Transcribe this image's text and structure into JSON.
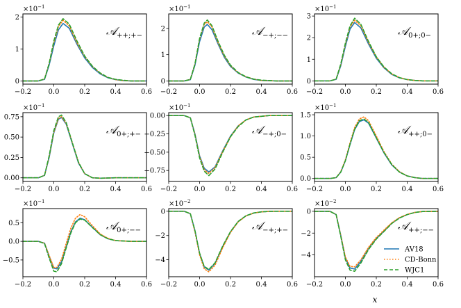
{
  "colors": {
    "AV18": "#1f77b4",
    "CD-Bonn": "#ff7f0e",
    "WJC1": "#2ca02c"
  },
  "chart_data": [
    {
      "type": "line",
      "label_main": "𝒜",
      "label_sub": "++;+−",
      "sci_mantissa": "×10",
      "sci_exponent": "−1",
      "xlim": [
        -0.2,
        0.6
      ],
      "ylim": [
        -0.1,
        2.1
      ],
      "xticks": [
        "−0.2",
        "0.0",
        "0.2",
        "0.4",
        "0.6"
      ],
      "xtick_values": [
        -0.2,
        0,
        0.2,
        0.4,
        0.6
      ],
      "yticks": [
        "0",
        "1",
        "2"
      ],
      "ytick_values": [
        0,
        1,
        2
      ],
      "x": [
        -0.2,
        -0.1,
        -0.06,
        -0.03,
        0.0,
        0.03,
        0.06,
        0.1,
        0.15,
        0.2,
        0.25,
        0.3,
        0.35,
        0.4,
        0.45,
        0.5,
        0.6
      ],
      "series": [
        {
          "name": "AV18",
          "values": [
            0,
            0,
            0.05,
            0.5,
            1.1,
            1.6,
            1.8,
            1.65,
            1.15,
            0.72,
            0.42,
            0.22,
            0.1,
            0.04,
            0.01,
            0,
            0
          ]
        },
        {
          "name": "CD-Bonn",
          "values": [
            0,
            0,
            0.06,
            0.55,
            1.2,
            1.7,
            1.9,
            1.72,
            1.2,
            0.76,
            0.45,
            0.24,
            0.11,
            0.04,
            0.01,
            0,
            0
          ]
        },
        {
          "name": "WJC1",
          "values": [
            0,
            0,
            0.06,
            0.55,
            1.25,
            1.75,
            1.95,
            1.78,
            1.25,
            0.78,
            0.46,
            0.25,
            0.11,
            0.05,
            0.02,
            0,
            0
          ]
        }
      ]
    },
    {
      "type": "line",
      "label_main": "𝒜",
      "label_sub": "−+;−−",
      "sci_mantissa": "×10",
      "sci_exponent": "−1",
      "xlim": [
        -0.2,
        0.6
      ],
      "ylim": [
        -0.12,
        2.55
      ],
      "xticks": [
        "−0.2",
        "0.0",
        "0.2",
        "0.4",
        "0.6"
      ],
      "xtick_values": [
        -0.2,
        0,
        0.2,
        0.4,
        0.6
      ],
      "yticks": [
        "0",
        "1",
        "2"
      ],
      "ytick_values": [
        0,
        1,
        2
      ],
      "x": [
        -0.2,
        -0.1,
        -0.06,
        -0.03,
        0.0,
        0.03,
        0.05,
        0.08,
        0.12,
        0.16,
        0.2,
        0.25,
        0.3,
        0.35,
        0.4,
        0.5,
        0.6
      ],
      "series": [
        {
          "name": "AV18",
          "values": [
            0,
            0,
            0.05,
            0.6,
            1.5,
            2.05,
            2.15,
            1.95,
            1.4,
            0.9,
            0.55,
            0.3,
            0.15,
            0.06,
            0.02,
            0,
            0
          ]
        },
        {
          "name": "CD-Bonn",
          "values": [
            0,
            0,
            0.06,
            0.65,
            1.6,
            2.15,
            2.25,
            2.05,
            1.45,
            0.95,
            0.58,
            0.31,
            0.16,
            0.07,
            0.02,
            0,
            0
          ]
        },
        {
          "name": "WJC1",
          "values": [
            0,
            0,
            0.06,
            0.65,
            1.62,
            2.2,
            2.32,
            2.1,
            1.5,
            0.98,
            0.6,
            0.32,
            0.16,
            0.07,
            0.03,
            0,
            0
          ]
        }
      ]
    },
    {
      "type": "line",
      "label_main": "𝒜",
      "label_sub": "0+;0−",
      "sci_mantissa": "×10",
      "sci_exponent": "−1",
      "xlim": [
        -0.2,
        0.6
      ],
      "ylim": [
        -0.15,
        3.1
      ],
      "xticks": [
        "−0.2",
        "0.0",
        "0.2",
        "0.4",
        "0.6"
      ],
      "xtick_values": [
        -0.2,
        0,
        0.2,
        0.4,
        0.6
      ],
      "yticks": [
        "0",
        "1",
        "2",
        "3"
      ],
      "ytick_values": [
        0,
        1,
        2,
        3
      ],
      "x": [
        -0.2,
        -0.1,
        -0.06,
        -0.03,
        0.0,
        0.03,
        0.06,
        0.1,
        0.15,
        0.2,
        0.25,
        0.3,
        0.35,
        0.4,
        0.45,
        0.5,
        0.6
      ],
      "series": [
        {
          "name": "AV18",
          "values": [
            0,
            0,
            0.07,
            0.7,
            1.6,
            2.4,
            2.7,
            2.45,
            1.7,
            1.05,
            0.6,
            0.3,
            0.14,
            0.06,
            0.02,
            0,
            0
          ]
        },
        {
          "name": "CD-Bonn",
          "values": [
            0,
            0,
            0.08,
            0.75,
            1.7,
            2.5,
            2.8,
            2.55,
            1.78,
            1.1,
            0.63,
            0.32,
            0.15,
            0.06,
            0.02,
            0,
            0
          ]
        },
        {
          "name": "WJC1",
          "values": [
            0,
            0,
            0.08,
            0.78,
            1.75,
            2.55,
            2.9,
            2.62,
            1.82,
            1.12,
            0.64,
            0.33,
            0.15,
            0.06,
            0.02,
            0,
            0
          ]
        }
      ]
    },
    {
      "type": "line",
      "label_main": "𝒜",
      "label_sub": "0+;+−",
      "sci_mantissa": "×10",
      "sci_exponent": "−1",
      "xlim": [
        -0.2,
        0.6
      ],
      "ylim": [
        -0.045,
        0.8
      ],
      "xticks": [
        "−0.2",
        "0.0",
        "0.2",
        "0.4",
        "0.6"
      ],
      "xtick_values": [
        -0.2,
        0,
        0.2,
        0.4,
        0.6
      ],
      "yticks": [
        "0.00",
        "0.25",
        "0.50",
        "0.75"
      ],
      "ytick_values": [
        0,
        0.25,
        0.5,
        0.75
      ],
      "x": [
        -0.2,
        -0.1,
        -0.06,
        -0.03,
        0.0,
        0.03,
        0.05,
        0.08,
        0.12,
        0.16,
        0.2,
        0.25,
        0.3,
        0.4,
        0.5,
        0.6
      ],
      "series": [
        {
          "name": "AV18",
          "values": [
            0,
            0,
            0.03,
            0.25,
            0.55,
            0.72,
            0.74,
            0.66,
            0.42,
            0.18,
            0.05,
            0.0,
            -0.005,
            0,
            0,
            0
          ]
        },
        {
          "name": "CD-Bonn",
          "values": [
            0,
            0,
            0.03,
            0.26,
            0.56,
            0.73,
            0.75,
            0.67,
            0.43,
            0.19,
            0.05,
            0.0,
            -0.005,
            0,
            0,
            0
          ]
        },
        {
          "name": "WJC1",
          "values": [
            0,
            0,
            0.03,
            0.27,
            0.58,
            0.75,
            0.77,
            0.68,
            0.43,
            0.19,
            0.05,
            0.0,
            -0.005,
            0,
            0,
            0
          ]
        }
      ]
    },
    {
      "type": "line",
      "label_main": "𝒜",
      "label_sub": "−+;0−",
      "sci_mantissa": "×10",
      "sci_exponent": "−1",
      "xlim": [
        -0.2,
        0.6
      ],
      "ylim": [
        -0.9,
        0.04
      ],
      "xticks": [
        "−0.2",
        "0.0",
        "0.2",
        "0.4",
        "0.6"
      ],
      "xtick_values": [
        -0.2,
        0,
        0.2,
        0.4,
        0.6
      ],
      "yticks": [
        "0.00",
        "−0.25",
        "−0.50",
        "−0.75"
      ],
      "ytick_values": [
        0,
        -0.25,
        -0.5,
        -0.75
      ],
      "x": [
        -0.2,
        -0.1,
        -0.06,
        -0.03,
        0.0,
        0.03,
        0.06,
        0.1,
        0.15,
        0.2,
        0.25,
        0.3,
        0.35,
        0.4,
        0.45,
        0.5,
        0.6
      ],
      "series": [
        {
          "name": "AV18",
          "values": [
            0,
            0,
            -0.03,
            -0.25,
            -0.55,
            -0.72,
            -0.77,
            -0.7,
            -0.48,
            -0.28,
            -0.14,
            -0.06,
            -0.02,
            -0.01,
            0,
            0,
            0
          ]
        },
        {
          "name": "CD-Bonn",
          "values": [
            0,
            0,
            -0.03,
            -0.26,
            -0.56,
            -0.74,
            -0.79,
            -0.71,
            -0.49,
            -0.29,
            -0.14,
            -0.06,
            -0.02,
            -0.01,
            0,
            0,
            0
          ]
        },
        {
          "name": "WJC1",
          "values": [
            0,
            0,
            -0.03,
            -0.27,
            -0.58,
            -0.76,
            -0.82,
            -0.73,
            -0.5,
            -0.29,
            -0.15,
            -0.06,
            -0.02,
            -0.01,
            0,
            0,
            0
          ]
        }
      ]
    },
    {
      "type": "line",
      "label_main": "𝒜",
      "label_sub": "++;0−",
      "sci_mantissa": "×10",
      "sci_exponent": "−1",
      "xlim": [
        -0.2,
        0.6
      ],
      "ylim": [
        -0.07,
        1.55
      ],
      "xticks": [
        "−0.2",
        "0.0",
        "0.2",
        "0.4",
        "0.6"
      ],
      "xtick_values": [
        -0.2,
        0,
        0.2,
        0.4,
        0.6
      ],
      "yticks": [
        "0.0",
        "0.5",
        "1.0",
        "1.5"
      ],
      "ytick_values": [
        0,
        0.5,
        1,
        1.5
      ],
      "x": [
        -0.2,
        -0.1,
        -0.06,
        -0.03,
        0.0,
        0.03,
        0.06,
        0.09,
        0.12,
        0.15,
        0.2,
        0.25,
        0.3,
        0.35,
        0.4,
        0.45,
        0.5,
        0.6
      ],
      "series": [
        {
          "name": "AV18",
          "values": [
            0,
            0,
            0.02,
            0.15,
            0.42,
            0.8,
            1.15,
            1.34,
            1.38,
            1.3,
            0.95,
            0.6,
            0.32,
            0.15,
            0.06,
            0.02,
            0,
            0
          ]
        },
        {
          "name": "CD-Bonn",
          "values": [
            0,
            0,
            0.02,
            0.16,
            0.44,
            0.84,
            1.2,
            1.4,
            1.45,
            1.36,
            1.0,
            0.63,
            0.34,
            0.16,
            0.06,
            0.02,
            0,
            0
          ]
        },
        {
          "name": "WJC1",
          "values": [
            0,
            0,
            0.02,
            0.15,
            0.42,
            0.81,
            1.16,
            1.36,
            1.4,
            1.32,
            0.96,
            0.61,
            0.33,
            0.15,
            0.06,
            0.02,
            0,
            0
          ]
        }
      ]
    },
    {
      "type": "line",
      "label_main": "𝒜",
      "label_sub": "0+;−−",
      "sci_mantissa": "×10",
      "sci_exponent": "−1",
      "xlim": [
        -0.2,
        0.6
      ],
      "ylim": [
        -0.95,
        0.88
      ],
      "xticks": [
        "−0.2",
        "0.0",
        "0.2",
        "0.4",
        "0.6"
      ],
      "xtick_values": [
        -0.2,
        0,
        0.2,
        0.4,
        0.6
      ],
      "yticks": [
        "0.5",
        "0.0",
        "−0.5"
      ],
      "ytick_values": [
        0.5,
        0,
        -0.5
      ],
      "x": [
        -0.2,
        -0.1,
        -0.06,
        -0.03,
        0.0,
        0.02,
        0.05,
        0.08,
        0.11,
        0.14,
        0.17,
        0.2,
        0.25,
        0.3,
        0.35,
        0.4,
        0.5,
        0.6
      ],
      "series": [
        {
          "name": "AV18",
          "values": [
            0,
            0,
            -0.05,
            -0.4,
            -0.72,
            -0.74,
            -0.55,
            -0.15,
            0.25,
            0.52,
            0.62,
            0.58,
            0.38,
            0.18,
            0.07,
            0.02,
            0,
            0
          ]
        },
        {
          "name": "CD-Bonn",
          "values": [
            0,
            0,
            -0.05,
            -0.38,
            -0.7,
            -0.7,
            -0.48,
            -0.06,
            0.35,
            0.62,
            0.72,
            0.66,
            0.42,
            0.2,
            0.08,
            0.02,
            0,
            0
          ]
        },
        {
          "name": "WJC1",
          "values": [
            0,
            0,
            -0.06,
            -0.45,
            -0.8,
            -0.82,
            -0.6,
            -0.18,
            0.22,
            0.5,
            0.6,
            0.57,
            0.37,
            0.18,
            0.07,
            0.02,
            0,
            0
          ]
        }
      ]
    },
    {
      "type": "line",
      "label_main": "𝒜",
      "label_sub": "−+;+−",
      "sci_mantissa": "×10",
      "sci_exponent": "−2",
      "xlim": [
        -0.2,
        0.6
      ],
      "ylim": [
        -5.4,
        0.22
      ],
      "xticks": [
        "−0.2",
        "0.0",
        "0.2",
        "0.4",
        "0.6"
      ],
      "xtick_values": [
        -0.2,
        0,
        0.2,
        0.4,
        0.6
      ],
      "yticks": [
        "0",
        "−2",
        "−4"
      ],
      "ytick_values": [
        0,
        -2,
        -4
      ],
      "x": [
        -0.2,
        -0.1,
        -0.06,
        -0.03,
        0.0,
        0.03,
        0.06,
        0.1,
        0.15,
        0.2,
        0.25,
        0.3,
        0.35,
        0.4,
        0.45,
        0.5,
        0.6
      ],
      "series": [
        {
          "name": "AV18",
          "values": [
            0,
            0,
            -0.2,
            -1.6,
            -3.5,
            -4.6,
            -4.85,
            -4.3,
            -2.9,
            -1.7,
            -0.85,
            -0.38,
            -0.15,
            -0.05,
            -0.01,
            0,
            0
          ]
        },
        {
          "name": "CD-Bonn",
          "values": [
            0,
            0,
            -0.2,
            -1.7,
            -3.6,
            -4.75,
            -5.0,
            -4.45,
            -3.0,
            -1.75,
            -0.88,
            -0.39,
            -0.15,
            -0.05,
            -0.01,
            0,
            0
          ]
        },
        {
          "name": "WJC1",
          "values": [
            0,
            0,
            -0.2,
            -1.6,
            -3.45,
            -4.55,
            -4.8,
            -4.25,
            -2.85,
            -1.68,
            -0.84,
            -0.37,
            -0.14,
            -0.05,
            -0.01,
            0,
            0
          ]
        }
      ]
    },
    {
      "type": "line",
      "label_main": "𝒜",
      "label_sub": "++;−−",
      "sci_mantissa": "×10",
      "sci_exponent": "−2",
      "xlim": [
        -0.2,
        0.6
      ],
      "ylim": [
        -6.0,
        0.25
      ],
      "xticks": [
        "−0.2",
        "0.0",
        "0.2",
        "0.4",
        "0.6"
      ],
      "xtick_values": [
        -0.2,
        0,
        0.2,
        0.4,
        0.6
      ],
      "yticks": [
        "0",
        "−2",
        "−4"
      ],
      "ytick_values": [
        0,
        -2,
        -4
      ],
      "x": [
        -0.2,
        -0.1,
        -0.06,
        -0.03,
        0.0,
        0.03,
        0.06,
        0.1,
        0.15,
        0.2,
        0.25,
        0.3,
        0.35,
        0.4,
        0.45,
        0.5,
        0.6
      ],
      "series": [
        {
          "name": "AV18",
          "values": [
            0,
            0,
            -0.3,
            -2.2,
            -4.3,
            -5.2,
            -5.3,
            -4.6,
            -3.4,
            -2.5,
            -1.8,
            -1.1,
            -0.6,
            -0.3,
            -0.1,
            -0.02,
            0
          ]
        },
        {
          "name": "CD-Bonn",
          "values": [
            0,
            0,
            -0.3,
            -2.2,
            -4.2,
            -5.05,
            -5.1,
            -4.45,
            -3.3,
            -2.4,
            -1.72,
            -1.05,
            -0.58,
            -0.28,
            -0.1,
            -0.02,
            0
          ]
        },
        {
          "name": "WJC1",
          "values": [
            0,
            0,
            -0.3,
            -2.3,
            -4.45,
            -5.4,
            -5.5,
            -4.75,
            -3.5,
            -2.55,
            -1.85,
            -1.12,
            -0.62,
            -0.3,
            -0.11,
            -0.02,
            0
          ]
        }
      ]
    }
  ],
  "x_axis_label": "x",
  "legend": [
    {
      "name": "AV18",
      "label": "AV18"
    },
    {
      "name": "CD-Bonn",
      "label": "CD-Bonn"
    },
    {
      "name": "WJC1",
      "label": "WJC1"
    }
  ]
}
